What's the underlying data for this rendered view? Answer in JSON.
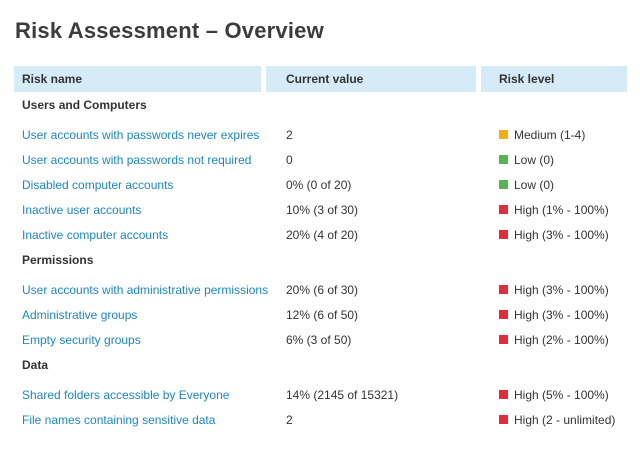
{
  "page": {
    "title": "Risk Assessment – Overview"
  },
  "table": {
    "headers": {
      "risk_name": "Risk name",
      "current_value": "Current value",
      "risk_level": "Risk level"
    },
    "sections": [
      {
        "name": "Users and Computers",
        "rows": [
          {
            "name": "User accounts with passwords never expires",
            "value": "2",
            "level": "Medium (1-4)",
            "severity": "medium"
          },
          {
            "name": "User accounts with passwords not required",
            "value": "0",
            "level": "Low (0)",
            "severity": "low"
          },
          {
            "name": "Disabled computer accounts",
            "value": "0% (0 of 20)",
            "level": "Low (0)",
            "severity": "low"
          },
          {
            "name": "Inactive user accounts",
            "value": "10% (3 of 30)",
            "level": "High (1% - 100%)",
            "severity": "high"
          },
          {
            "name": "Inactive computer accounts",
            "value": "20% (4 of 20)",
            "level": "High (3% - 100%)",
            "severity": "high"
          }
        ]
      },
      {
        "name": "Permissions",
        "rows": [
          {
            "name": "User accounts with administrative permissions",
            "value": "20% (6 of 30)",
            "level": "High (3% - 100%)",
            "severity": "high"
          },
          {
            "name": "Administrative groups",
            "value": "12% (6 of 50)",
            "level": "High (3% - 100%)",
            "severity": "high"
          },
          {
            "name": "Empty security groups",
            "value": "6% (3 of 50)",
            "level": "High (2% - 100%)",
            "severity": "high"
          }
        ]
      },
      {
        "name": "Data",
        "rows": [
          {
            "name": "Shared folders accessible by Everyone",
            "value": "14% (2145 of 15321)",
            "level": "High (5% - 100%)",
            "severity": "high"
          },
          {
            "name": "File names containing sensitive data",
            "value": "2",
            "level": "High (2 - unlimited)",
            "severity": "high"
          }
        ]
      }
    ]
  },
  "colors": {
    "link": "#1d86c8",
    "header_bg": "#d6ebf8",
    "text": "#333333",
    "title": "#3c3c3c",
    "low": "#55b556",
    "medium": "#f2ae12",
    "high": "#e12d39"
  }
}
